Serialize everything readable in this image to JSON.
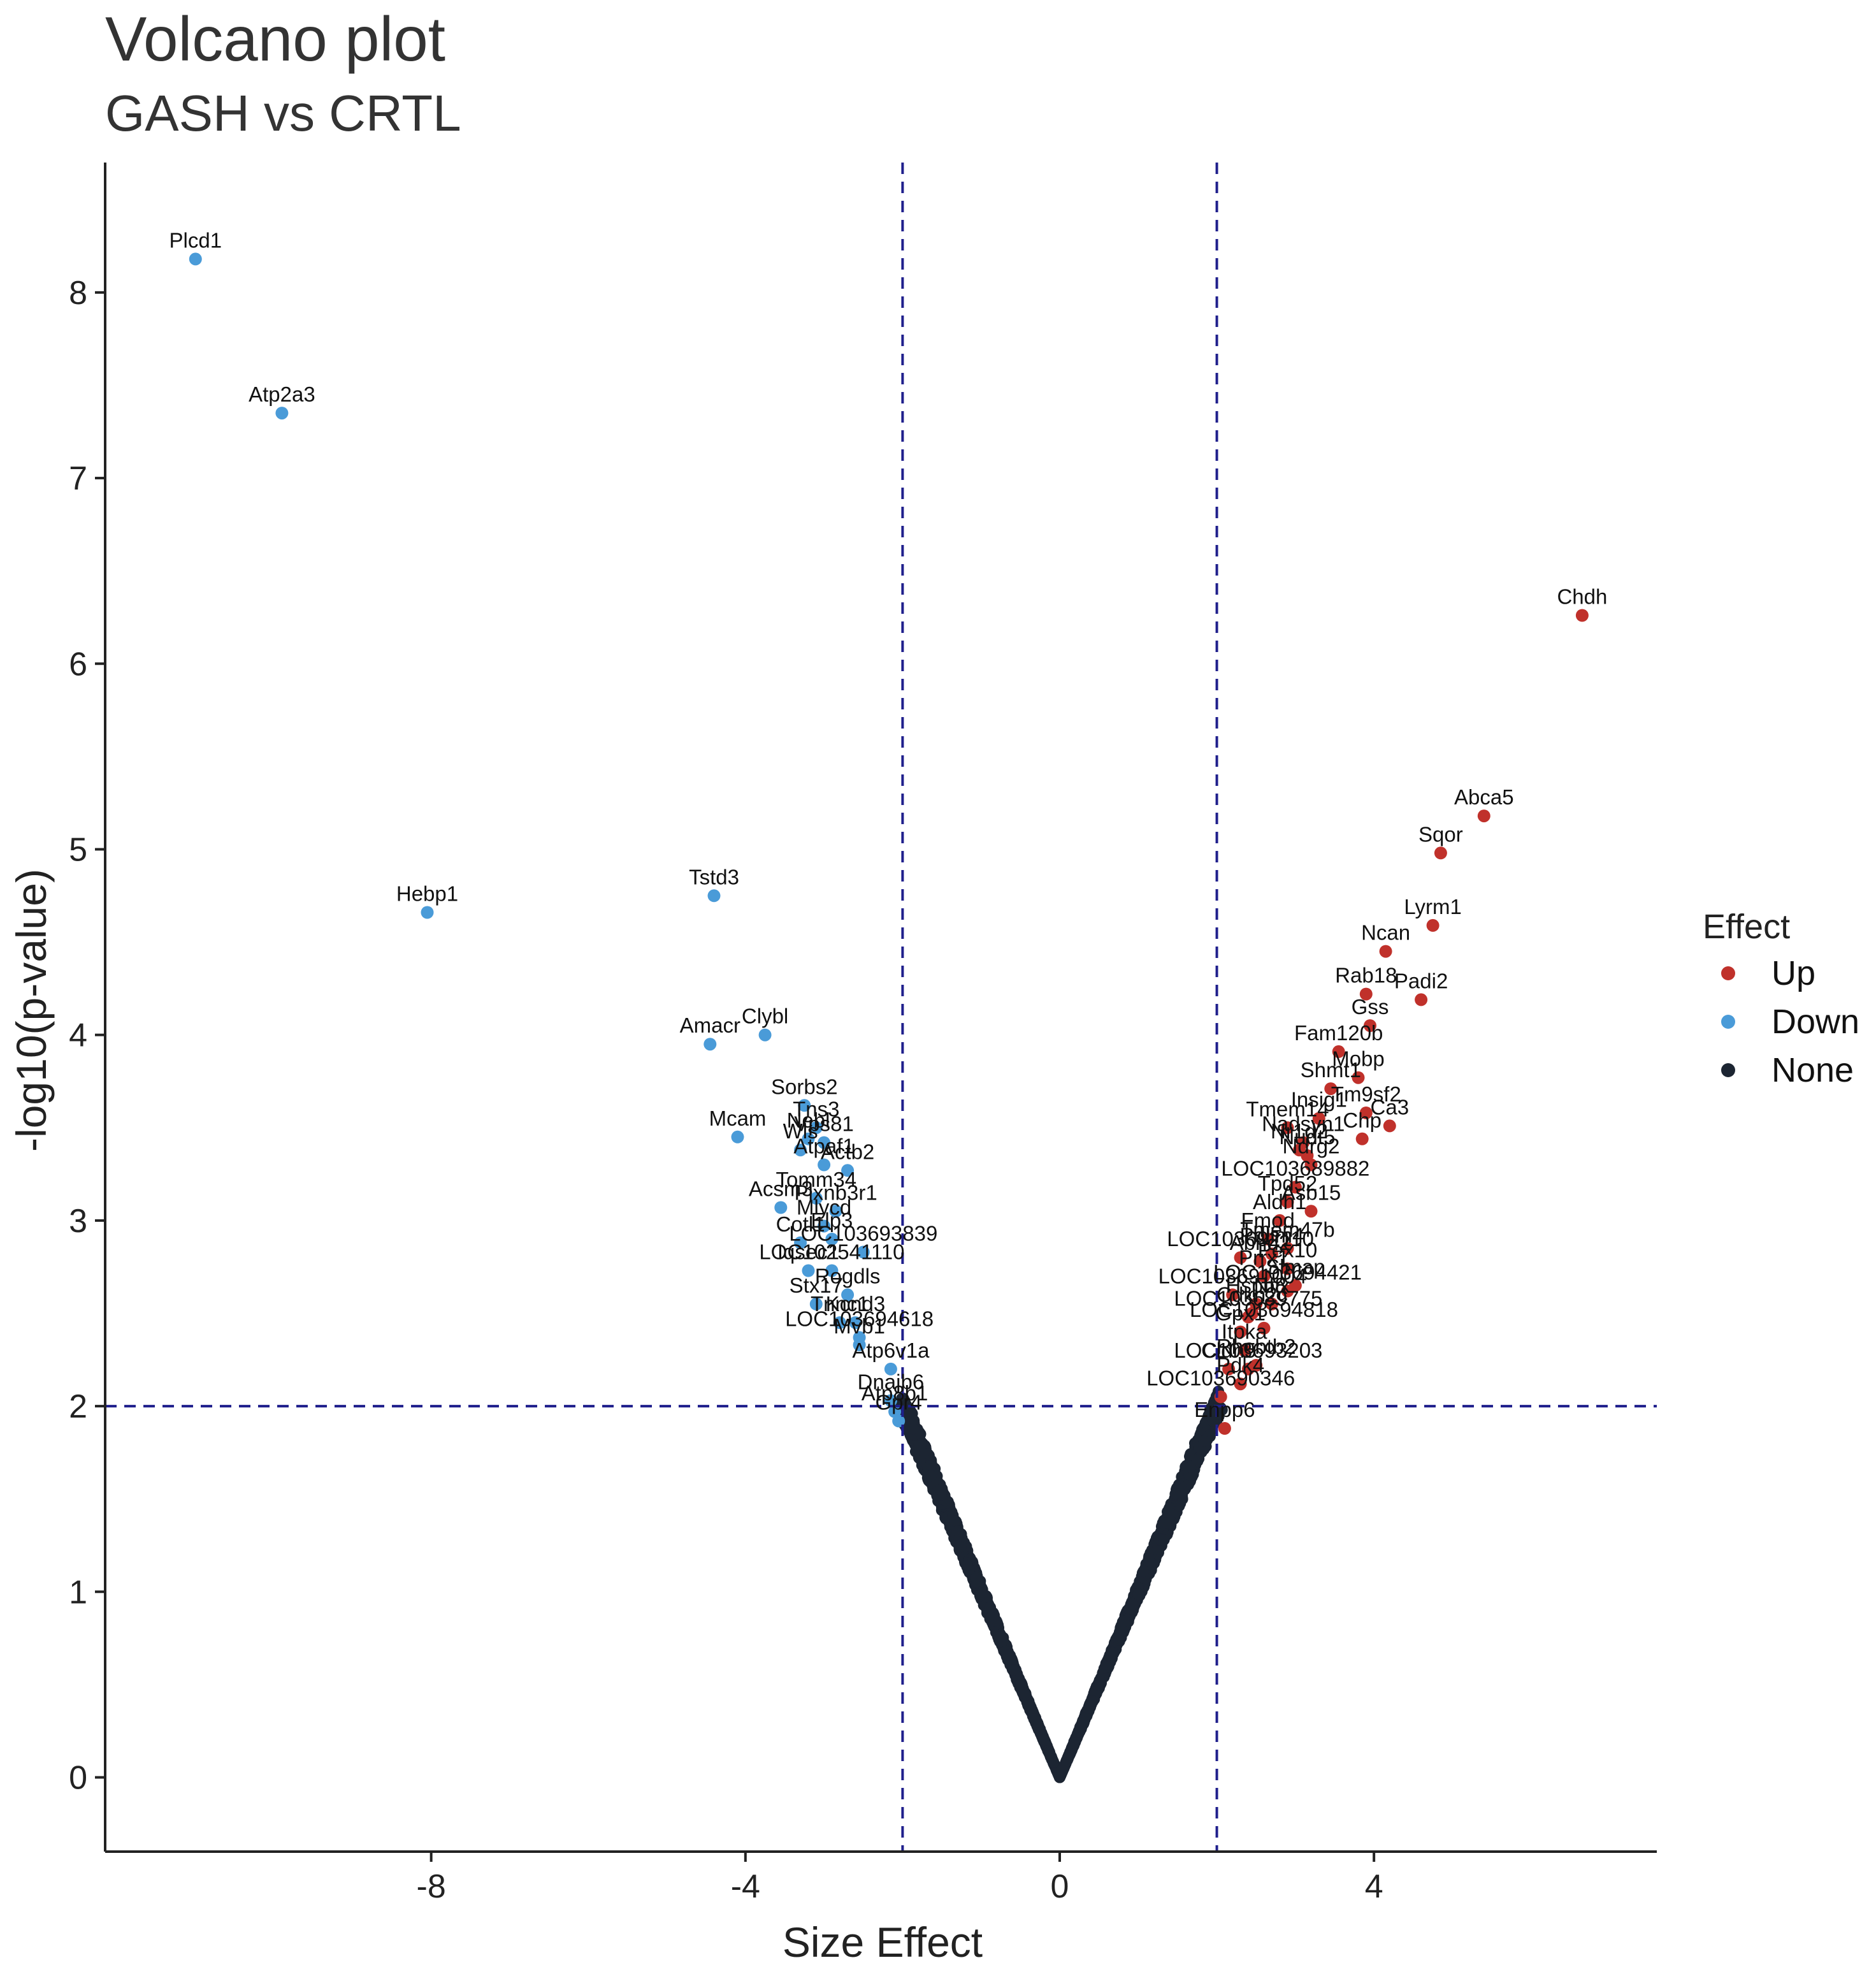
{
  "chart_data": {
    "type": "scatter",
    "title": "Volcano plot",
    "subtitle": "GASH vs CRTL",
    "xlabel": "Size Effect",
    "ylabel": "-log10(p-value)",
    "xlim": [
      -12.15,
      7.6
    ],
    "ylim": [
      -0.4,
      8.7
    ],
    "x_ticks": [
      -8,
      -4,
      0,
      4
    ],
    "x_tick_labels": [
      "-8",
      "-4",
      "0",
      "4"
    ],
    "y_ticks": [
      0,
      1,
      2,
      3,
      4,
      5,
      6,
      7,
      8
    ],
    "y_tick_labels": [
      "0",
      "1",
      "2",
      "3",
      "4",
      "5",
      "6",
      "7",
      "8"
    ],
    "thresholds": {
      "x": [
        -2,
        2
      ],
      "y": 2
    },
    "legend": {
      "title": "Effect",
      "placement": "right",
      "entries": [
        {
          "name": "Up",
          "color": "#c0312b"
        },
        {
          "name": "Down",
          "color": "#4a9bd8"
        },
        {
          "name": "None",
          "color": "#1c2532"
        }
      ]
    },
    "background_cloud": {
      "group": "None",
      "color": "#1c2532",
      "description_values": "dense V of points from (0, 0) rising to about (-2, 2) and (2, 2)",
      "spine": [
        [
          -2.0,
          2.0
        ],
        [
          0.0,
          0.0
        ],
        [
          2.0,
          2.0
        ]
      ]
    },
    "points": [
      {
        "gene": "Plcd1",
        "x": -11.0,
        "y": 8.18,
        "group": "Down"
      },
      {
        "gene": "Atp2a3",
        "x": -9.9,
        "y": 7.35,
        "group": "Down"
      },
      {
        "gene": "Hebp1",
        "x": -8.05,
        "y": 4.66,
        "group": "Down"
      },
      {
        "gene": "Tstd3",
        "x": -4.4,
        "y": 4.75,
        "group": "Down"
      },
      {
        "gene": "Amacr",
        "x": -4.45,
        "y": 3.95,
        "group": "Down"
      },
      {
        "gene": "Clybl",
        "x": -3.75,
        "y": 4.0,
        "group": "Down"
      },
      {
        "gene": "Sorbs2",
        "x": -3.25,
        "y": 3.62,
        "group": "Down"
      },
      {
        "gene": "Tns3",
        "x": -3.1,
        "y": 3.5,
        "group": "Down"
      },
      {
        "gene": "Mcam",
        "x": -4.1,
        "y": 3.45,
        "group": "Down"
      },
      {
        "gene": "Nebl",
        "x": -3.2,
        "y": 3.44,
        "group": "Down"
      },
      {
        "gene": "Vps81",
        "x": -3.0,
        "y": 3.42,
        "group": "Down"
      },
      {
        "gene": "Wls",
        "x": -3.3,
        "y": 3.38,
        "group": "Down"
      },
      {
        "gene": "Atpaf1",
        "x": -3.0,
        "y": 3.3,
        "group": "Down"
      },
      {
        "gene": "Actb2",
        "x": -2.7,
        "y": 3.27,
        "group": "Down"
      },
      {
        "gene": "Tomm34",
        "x": -3.1,
        "y": 3.12,
        "group": "Down"
      },
      {
        "gene": "Acsm3",
        "x": -3.55,
        "y": 3.07,
        "group": "Down"
      },
      {
        "gene": "Plxnb3r1",
        "x": -2.85,
        "y": 3.05,
        "group": "Down"
      },
      {
        "gene": "Mlycd",
        "x": -3.0,
        "y": 2.97,
        "group": "Down"
      },
      {
        "gene": "Cotl1",
        "x": -3.3,
        "y": 2.88,
        "group": "Down"
      },
      {
        "gene": "Elp3",
        "x": -2.9,
        "y": 2.9,
        "group": "Down"
      },
      {
        "gene": "LOC103693839",
        "x": -2.5,
        "y": 2.83,
        "group": "Down"
      },
      {
        "gene": "LOC102541110",
        "x": -2.9,
        "y": 2.73,
        "group": "Down"
      },
      {
        "gene": "Iqsec1",
        "x": -3.2,
        "y": 2.73,
        "group": "Down"
      },
      {
        "gene": "Rogdls",
        "x": -2.7,
        "y": 2.6,
        "group": "Down"
      },
      {
        "gene": "Stx17",
        "x": -3.1,
        "y": 2.55,
        "group": "Down"
      },
      {
        "gene": "Tnnc1",
        "x": -2.8,
        "y": 2.45,
        "group": "Down"
      },
      {
        "gene": "Kcnd3",
        "x": -2.6,
        "y": 2.45,
        "group": "Down"
      },
      {
        "gene": "Mvb1",
        "x": -2.55,
        "y": 2.33,
        "group": "Down"
      },
      {
        "gene": "LOC103694618",
        "x": -2.55,
        "y": 2.37,
        "group": "Down"
      },
      {
        "gene": "Atp6v1a",
        "x": -2.15,
        "y": 2.2,
        "group": "Down"
      },
      {
        "gene": "Dnajb6",
        "x": -2.15,
        "y": 2.03,
        "group": "Down"
      },
      {
        "gene": "Atp8b1",
        "x": -2.1,
        "y": 1.97,
        "group": "Down"
      },
      {
        "gene": "Gpr4",
        "x": -2.05,
        "y": 1.92,
        "group": "Down"
      },
      {
        "gene": "Chdh",
        "x": 6.65,
        "y": 6.26,
        "group": "Up"
      },
      {
        "gene": "Abca5",
        "x": 5.4,
        "y": 5.18,
        "group": "Up"
      },
      {
        "gene": "Sqor",
        "x": 4.85,
        "y": 4.98,
        "group": "Up"
      },
      {
        "gene": "Lyrm1",
        "x": 4.75,
        "y": 4.59,
        "group": "Up"
      },
      {
        "gene": "Ncan",
        "x": 4.15,
        "y": 4.45,
        "group": "Up"
      },
      {
        "gene": "Rab18",
        "x": 3.9,
        "y": 4.22,
        "group": "Up"
      },
      {
        "gene": "Padi2",
        "x": 4.6,
        "y": 4.19,
        "group": "Up"
      },
      {
        "gene": "Gss",
        "x": 3.95,
        "y": 4.05,
        "group": "Up"
      },
      {
        "gene": "Fam120b",
        "x": 3.55,
        "y": 3.91,
        "group": "Up"
      },
      {
        "gene": "Mobp",
        "x": 3.8,
        "y": 3.77,
        "group": "Up"
      },
      {
        "gene": "Shmt1",
        "x": 3.45,
        "y": 3.71,
        "group": "Up"
      },
      {
        "gene": "Tm9sf2",
        "x": 3.9,
        "y": 3.58,
        "group": "Up"
      },
      {
        "gene": "Insig1",
        "x": 3.3,
        "y": 3.55,
        "group": "Up"
      },
      {
        "gene": "Ca3",
        "x": 4.2,
        "y": 3.51,
        "group": "Up"
      },
      {
        "gene": "Chp",
        "x": 3.85,
        "y": 3.44,
        "group": "Up"
      },
      {
        "gene": "Tmem14",
        "x": 2.9,
        "y": 3.5,
        "group": "Up"
      },
      {
        "gene": "Nadsyn1",
        "x": 3.1,
        "y": 3.42,
        "group": "Up"
      },
      {
        "gene": "Nudt5",
        "x": 3.15,
        "y": 3.35,
        "group": "Up"
      },
      {
        "gene": "Ndrg2",
        "x": 3.2,
        "y": 3.3,
        "group": "Up"
      },
      {
        "gene": "Nr1d2",
        "x": 3.05,
        "y": 3.38,
        "group": "Up"
      },
      {
        "gene": "LOC103689882",
        "x": 3.0,
        "y": 3.18,
        "group": "Up"
      },
      {
        "gene": "Tpd52",
        "x": 2.9,
        "y": 3.1,
        "group": "Up"
      },
      {
        "gene": "Asb15",
        "x": 3.2,
        "y": 3.05,
        "group": "Up"
      },
      {
        "gene": "Aldh1",
        "x": 2.8,
        "y": 3.0,
        "group": "Up"
      },
      {
        "gene": "Fmod",
        "x": 2.65,
        "y": 2.9,
        "group": "Up"
      },
      {
        "gene": "Tmem47b",
        "x": 2.9,
        "y": 2.85,
        "group": "Up"
      },
      {
        "gene": "LOC103692110",
        "x": 2.3,
        "y": 2.8,
        "group": "Up"
      },
      {
        "gene": "Pdlim4",
        "x": 2.7,
        "y": 2.82,
        "group": "Up"
      },
      {
        "gene": "Abhd2",
        "x": 2.55,
        "y": 2.78,
        "group": "Up"
      },
      {
        "gene": "Pex10",
        "x": 2.9,
        "y": 2.74,
        "group": "Up"
      },
      {
        "gene": "Prrx1",
        "x": 2.6,
        "y": 2.7,
        "group": "Up"
      },
      {
        "gene": "Slmap",
        "x": 3.0,
        "y": 2.65,
        "group": "Up"
      },
      {
        "gene": "LOC103694421",
        "x": 2.9,
        "y": 2.62,
        "group": "Up"
      },
      {
        "gene": "LOC103691004",
        "x": 2.2,
        "y": 2.6,
        "group": "Up"
      },
      {
        "gene": "Hspb8",
        "x": 2.5,
        "y": 2.55,
        "group": "Up"
      },
      {
        "gene": "Nfix",
        "x": 2.7,
        "y": 2.55,
        "group": "Up"
      },
      {
        "gene": "Cdkn2c",
        "x": 2.45,
        "y": 2.5,
        "group": "Up"
      },
      {
        "gene": "LOC103689775",
        "x": 2.4,
        "y": 2.48,
        "group": "Up"
      },
      {
        "gene": "LOC103694818",
        "x": 2.6,
        "y": 2.42,
        "group": "Up"
      },
      {
        "gene": "Gpx1",
        "x": 2.3,
        "y": 2.4,
        "group": "Up"
      },
      {
        "gene": "Itpka",
        "x": 2.35,
        "y": 2.3,
        "group": "Up"
      },
      {
        "gene": "Rhobtb2",
        "x": 2.5,
        "y": 2.22,
        "group": "Up"
      },
      {
        "gene": "Cldn5",
        "x": 2.15,
        "y": 2.2,
        "group": "Up"
      },
      {
        "gene": "LOC103693203",
        "x": 2.4,
        "y": 2.2,
        "group": "Up"
      },
      {
        "gene": "Pdk4",
        "x": 2.3,
        "y": 2.12,
        "group": "Up"
      },
      {
        "gene": "LOC103690346",
        "x": 2.05,
        "y": 2.05,
        "group": "Up"
      },
      {
        "gene": "Enpp6",
        "x": 2.1,
        "y": 1.88,
        "group": "Up"
      }
    ]
  }
}
